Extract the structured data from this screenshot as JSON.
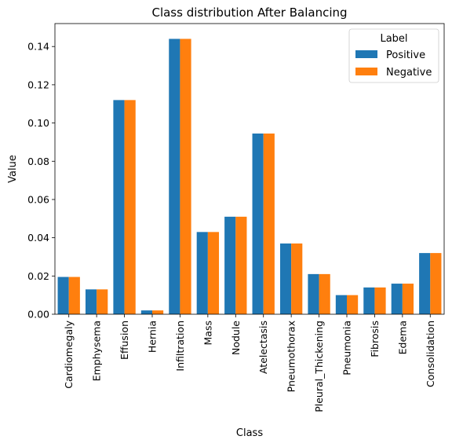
{
  "chart_data": {
    "type": "bar",
    "title": "Class distribution After Balancing",
    "xlabel": "Class",
    "ylabel": "Value",
    "ylim": [
      0,
      0.152
    ],
    "yticks": [
      "0.00",
      "0.02",
      "0.04",
      "0.06",
      "0.08",
      "0.10",
      "0.12",
      "0.14"
    ],
    "ytick_values": [
      0,
      0.02,
      0.04,
      0.06,
      0.08,
      0.1,
      0.12,
      0.14
    ],
    "categories": [
      "Cardiomegaly",
      "Emphysema",
      "Effusion",
      "Hernia",
      "Infiltration",
      "Mass",
      "Nodule",
      "Atelectasis",
      "Pneumothorax",
      "Pleural_Thickening",
      "Pneumonia",
      "Fibrosis",
      "Edema",
      "Consolidation"
    ],
    "series": [
      {
        "name": "Positive",
        "color": "#1f77b4",
        "values": [
          0.0195,
          0.013,
          0.112,
          0.002,
          0.144,
          0.043,
          0.051,
          0.0945,
          0.037,
          0.021,
          0.01,
          0.014,
          0.016,
          0.032
        ]
      },
      {
        "name": "Negative",
        "color": "#ff7f0e",
        "values": [
          0.0195,
          0.013,
          0.112,
          0.002,
          0.144,
          0.043,
          0.051,
          0.0945,
          0.037,
          0.021,
          0.01,
          0.014,
          0.016,
          0.032
        ]
      }
    ],
    "legend": {
      "title": "Label",
      "placement": "top-right"
    },
    "grid": false
  }
}
